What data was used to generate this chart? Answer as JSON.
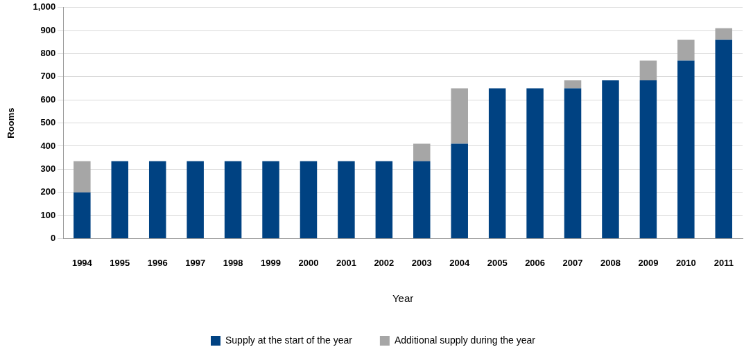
{
  "chart_data": {
    "type": "bar",
    "stacked": true,
    "xlabel": "Year",
    "ylabel": "Rooms",
    "categories": [
      "1994",
      "1995",
      "1996",
      "1997",
      "1998",
      "1999",
      "2000",
      "2001",
      "2002",
      "2003",
      "2004",
      "2005",
      "2006",
      "2007",
      "2008",
      "2009",
      "2010",
      "2011"
    ],
    "series": [
      {
        "name": "Supply at the start of the year",
        "color": "#004282",
        "values": [
          200,
          335,
          335,
          335,
          335,
          335,
          335,
          335,
          335,
          335,
          410,
          650,
          650,
          650,
          685,
          685,
          770,
          860
        ]
      },
      {
        "name": "Additional supply during the year",
        "color": "#a6a6a6",
        "values": [
          135,
          0,
          0,
          0,
          0,
          0,
          0,
          0,
          0,
          75,
          240,
          0,
          0,
          35,
          0,
          85,
          90,
          50
        ]
      }
    ],
    "ylim": [
      0,
      1000
    ],
    "yticks": [
      0,
      100,
      200,
      300,
      400,
      500,
      600,
      700,
      800,
      900,
      {
        "value": 1000,
        "label": "1,000"
      }
    ],
    "grid": "y",
    "legend": "bottom"
  }
}
